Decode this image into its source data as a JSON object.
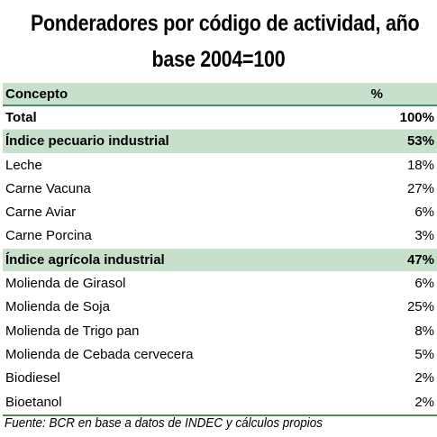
{
  "title": {
    "line1": "Ponderadores por código de actividad, año",
    "line2": "base 2004=100"
  },
  "table": {
    "headers": {
      "concept": "Concepto",
      "percent": "%"
    },
    "rows": [
      {
        "label": "Total",
        "value": "100%",
        "kind": "total"
      },
      {
        "label": "Índice pecuario industrial",
        "value": "53%",
        "kind": "group"
      },
      {
        "label": "Leche",
        "value": "18%",
        "kind": "item"
      },
      {
        "label": "Carne Vacuna",
        "value": "27%",
        "kind": "item"
      },
      {
        "label": "Carne Aviar",
        "value": "6%",
        "kind": "item"
      },
      {
        "label": "Carne Porcina",
        "value": "3%",
        "kind": "item"
      },
      {
        "label": "Índice agrícola industrial",
        "value": "47%",
        "kind": "group"
      },
      {
        "label": "Molienda de Girasol",
        "value": "6%",
        "kind": "item"
      },
      {
        "label": "Molienda de Soja",
        "value": "25%",
        "kind": "item"
      },
      {
        "label": "Molienda de Trigo pan",
        "value": "8%",
        "kind": "item"
      },
      {
        "label": "Molienda de Cebada cervecera",
        "value": "5%",
        "kind": "item"
      },
      {
        "label": "Biodiesel",
        "value": "2%",
        "kind": "item"
      },
      {
        "label": "Bioetanol",
        "value": "2%",
        "kind": "item"
      }
    ]
  },
  "footnote": "Fuente: BCR en base a datos de INDEC y cálculos propios",
  "colors": {
    "header_fill": "#c6e0cc",
    "group_fill": "#c6e0cc",
    "rule": "#4f8a5e"
  }
}
